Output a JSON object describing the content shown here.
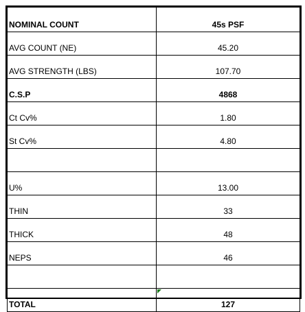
{
  "table": {
    "rows": [
      {
        "label": "NOMINAL COUNT",
        "value": "45s PSF",
        "label_bold": true,
        "value_bold": true
      },
      {
        "label": "AVG COUNT (NE)",
        "value": "45.20",
        "label_bold": false,
        "value_bold": false
      },
      {
        "label": "AVG STRENGTH (LBS)",
        "value": "107.70",
        "label_bold": false,
        "value_bold": false
      },
      {
        "label": "C.S.P",
        "value": "4868",
        "label_bold": true,
        "value_bold": true
      },
      {
        "label": "Ct Cv%",
        "value": "1.80",
        "label_bold": false,
        "value_bold": false
      },
      {
        "label": "St Cv%",
        "value": "4.80",
        "label_bold": false,
        "value_bold": false
      },
      {
        "label": "",
        "value": "",
        "label_bold": false,
        "value_bold": false
      },
      {
        "label": "U%",
        "value": "13.00",
        "label_bold": false,
        "value_bold": false
      },
      {
        "label": "THIN",
        "value": "33",
        "label_bold": false,
        "value_bold": false
      },
      {
        "label": "THICK",
        "value": "48",
        "label_bold": false,
        "value_bold": false
      },
      {
        "label": "NEPS",
        "value": "46",
        "label_bold": false,
        "value_bold": false
      },
      {
        "label": "",
        "value": "",
        "label_bold": false,
        "value_bold": false
      },
      {
        "label": "TOTAL",
        "value": "127",
        "label_bold": true,
        "value_bold": true
      }
    ],
    "flag_marker_color": "#1a7a1a"
  }
}
